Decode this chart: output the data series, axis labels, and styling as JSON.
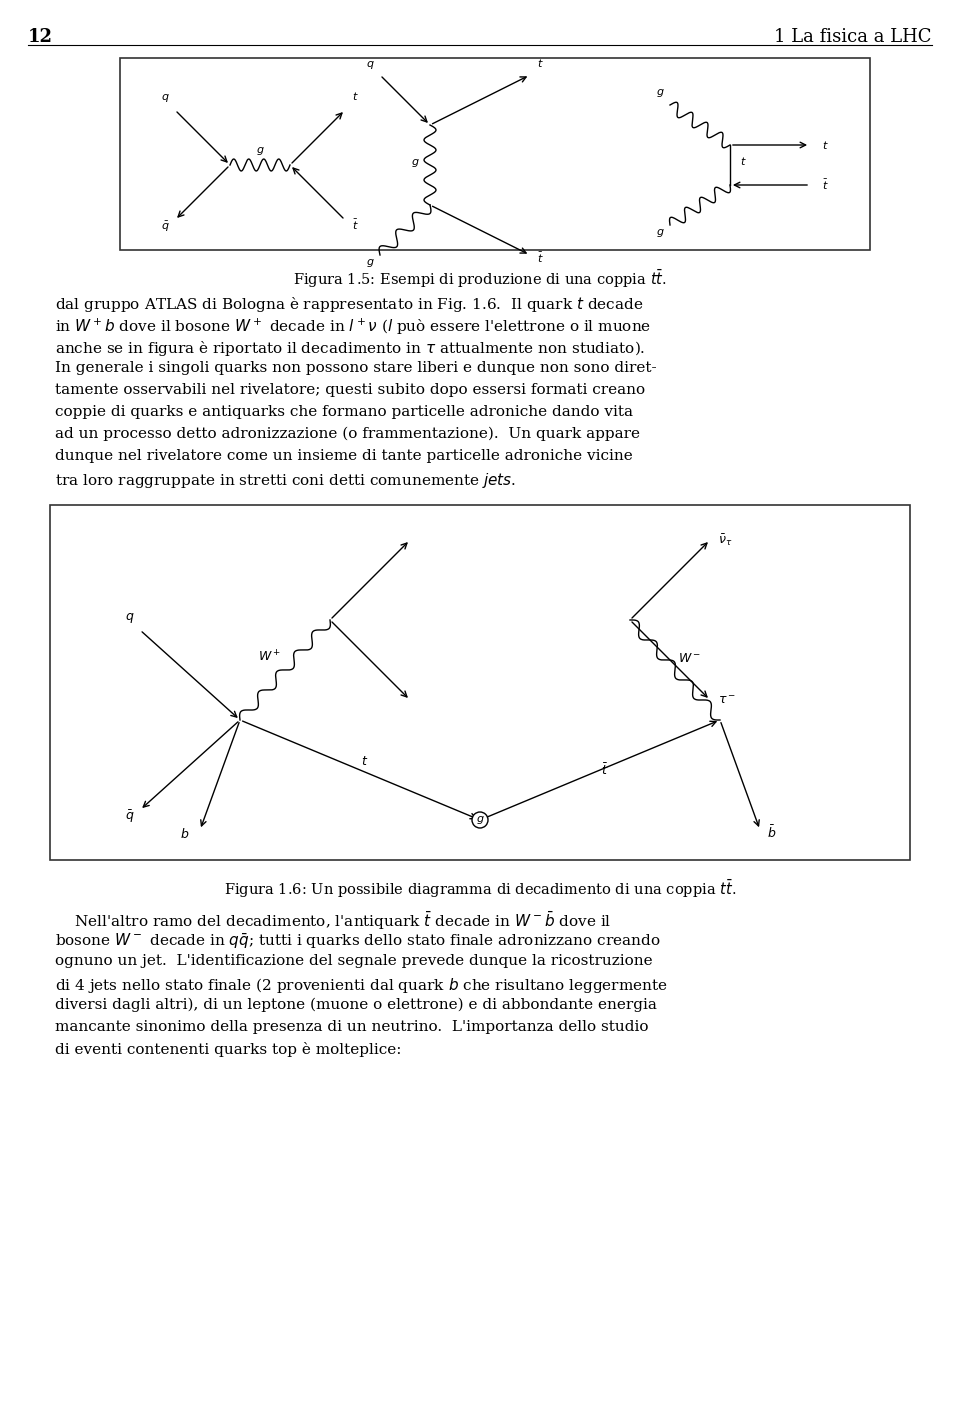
{
  "page_number": "12",
  "chapter_title": "1 La fisica a LHC",
  "fig1_caption": "Figura 1.5: Esempi di produzione di una coppia $t\\bar{t}$.",
  "fig2_caption": "Figura 1.6: Un possibile diagramma di decadimento di una coppia $t\\bar{t}$.",
  "body_text_1": "dal gruppo ATLAS di Bologna è rappresentato in Fig. 1.6.  Il quark $t$ decade\nin $W^+b$ dove il bosone $W^+$ decade in $l^+\\nu$ ($l$ può essere l’elettrone o il muone\nanche se in figura è riportato il decadimento in $\\tau$ attualmente non studiato).\nIn generale i singoli quarks non possono stare liberi e dunque non sono diret-\ntamente osservabili nel rivelatore; questi subito dopo essersi formati creano\ncoppie di quarks e antiquarks che formano particelle adroniche dando vita\nad un processo detto adronizzazione (o frammentazione).  Un quark appare\ndunque nel rivelatore come un insieme di tante particelle adroniche vicine\ntra loro raggruppate in stretti coni detti comunemente $jets$.",
  "body_text_2": "    Nell’altro ramo del decadimento, l’antiquark $\\bar{t}$ decade in $W^-\\bar{b}$ dove il\nbosone $W^-$ decade in $q\\bar{q}$; tutti i quarks dello stato finale adronizzano creando\nognuno un jet.  L’identificazione del segnale prevede dunque la ricostruzione\ndi 4 jets nello stato finale (2 provenienti dal quark $b$ che risultano leggermente\ndiversi dagli altri), di un leptone (muone o elettrone) e di abbondante energia\nmancante sinonimo della presenza di un neutrino.  L’importanza dello studio\ndi eventi contenenti quarks top è molteplice:",
  "bg_color": "#ffffff",
  "text_color": "#000000",
  "fig_bg_color": "#f8f8f8",
  "fig_border_color": "#333333"
}
